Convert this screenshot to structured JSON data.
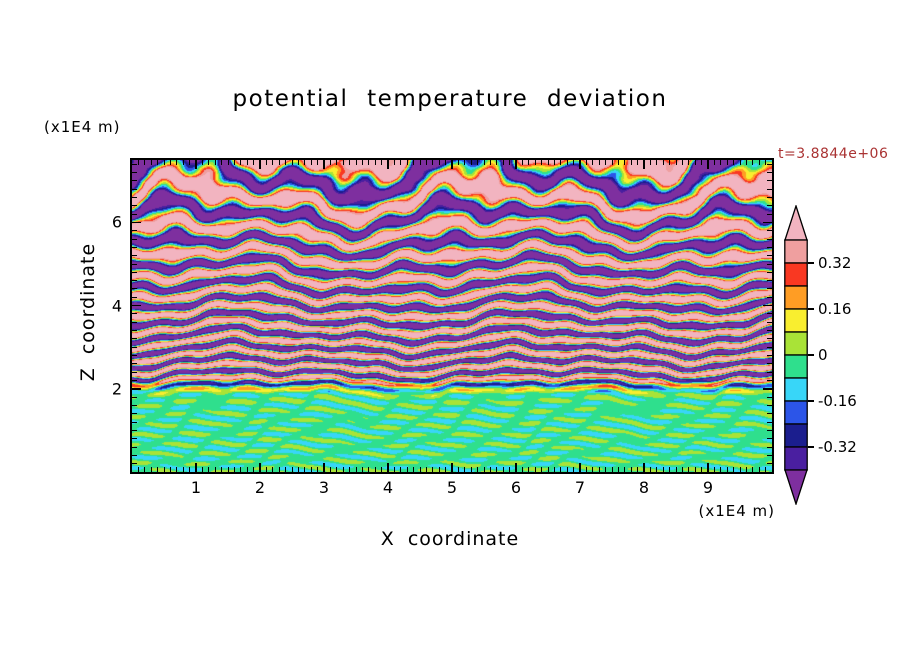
{
  "title": "potential temperature deviation",
  "timestamp_label": "t=3.8844e+06",
  "timestamp_color": "#aa3333",
  "axes": {
    "x_label": "X coordinate",
    "y_label": "Z coordinate",
    "x_units": "(x1E4 m)",
    "y_units": "(x1E4 m)"
  },
  "chart_data": {
    "type": "heatmap",
    "subtype": "filled-contour",
    "title": "potential temperature deviation",
    "xlabel": "X coordinate",
    "ylabel": "Z coordinate",
    "x_units": "(x1E4 m)",
    "y_units": "(x1E4 m)",
    "time_annotation": "t=3.8844e+06",
    "xlim": [
      0,
      10
    ],
    "ylim": [
      0,
      7.5
    ],
    "x_ticks": [
      1,
      2,
      3,
      4,
      5,
      6,
      7,
      8,
      9
    ],
    "y_ticks": [
      2,
      4,
      6
    ],
    "x_minor_step": 0.1,
    "y_minor_step": 0.2,
    "grid": false,
    "legend_position": "right-colorbar",
    "colorbar": {
      "orientation": "vertical",
      "labeled_levels": [
        "0.32",
        "0.16",
        "0",
        "-0.16",
        "-0.32"
      ],
      "level_values": [
        0.32,
        0.16,
        0,
        -0.16,
        -0.32
      ],
      "segment_boundaries": [
        0.4,
        0.32,
        0.24,
        0.16,
        0.08,
        0,
        -0.08,
        -0.16,
        -0.24,
        -0.32,
        -0.4
      ],
      "segment_colors_top_to_bottom": [
        "#ef9f9f",
        "#f93822",
        "#ff9d24",
        "#f9ee2f",
        "#a9e337",
        "#2fdf8d",
        "#38d6f8",
        "#2c55e8",
        "#1b1e8e",
        "#4a1fa0"
      ],
      "over_color": "#f2b4c0",
      "under_color": "#7e2f9f"
    },
    "field_summary": "near-zero (green) deviations below z~2; thin sheared alternating positive/negative layers at mid-levels; broad alternating pink (positive) and purple (negative) layers aloft",
    "procedural": {
      "layer_cycles_a": 36,
      "layer_cycles_b": 16,
      "amp_base": 0.055,
      "amp_extra": 0.56,
      "amp_ramp": [
        0.24,
        0.33
      ],
      "bottom_bias": 0.04,
      "bottom_ramp": [
        0.2,
        0.3
      ],
      "wobbles": [
        {
          "amp": 2.0,
          "fx": 2.2,
          "fz": 0.4,
          "ph": 1.1
        },
        {
          "amp": 1.25,
          "fx": 4.6,
          "fz": -1.3,
          "ph": 4.2
        },
        {
          "amp": 0.7,
          "fx": 9.3,
          "fz": 2.1,
          "ph": 2.6
        },
        {
          "amp": 0.45,
          "fx": 15.8,
          "fz": -4.4,
          "ph": 0.7
        }
      ],
      "noise": {
        "amp": 0.05,
        "fx": 12.0,
        "fz": 21.0,
        "ph": 3.0
      }
    }
  }
}
